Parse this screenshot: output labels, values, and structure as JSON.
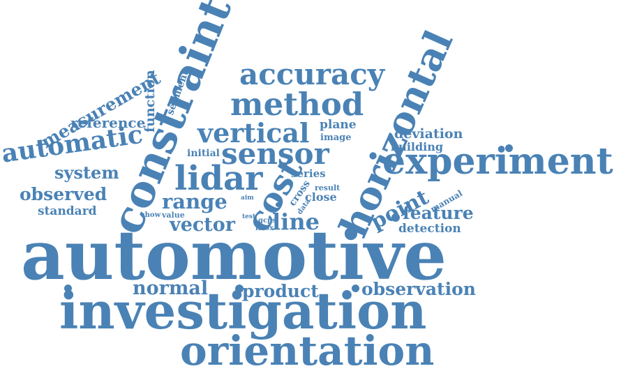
{
  "color": "#4a82b5",
  "words": [
    {
      "id": "automotive",
      "text": "automotive"
    },
    {
      "id": "investigation",
      "text": "investigation"
    },
    {
      "id": "orientation",
      "text": "orientation"
    },
    {
      "id": "constraint",
      "text": "constraint"
    },
    {
      "id": "horizontal",
      "text": "horizontal"
    },
    {
      "id": "experiment",
      "text": "experiment"
    },
    {
      "id": "accuracy",
      "text": "accuracy"
    },
    {
      "id": "method",
      "text": "method"
    },
    {
      "id": "vertical",
      "text": "vertical"
    },
    {
      "id": "sensor",
      "text": "sensor"
    },
    {
      "id": "lidar",
      "text": "lidar"
    },
    {
      "id": "cost",
      "text": "cost"
    },
    {
      "id": "automatic",
      "text": "automatic"
    },
    {
      "id": "measurement",
      "text": "measurement"
    },
    {
      "id": "function",
      "text": "function"
    },
    {
      "id": "segment",
      "text": "segment"
    },
    {
      "id": "reference",
      "text": "reference"
    },
    {
      "id": "system",
      "text": "system"
    },
    {
      "id": "observed",
      "text": "observed"
    },
    {
      "id": "standard",
      "text": "standard"
    },
    {
      "id": "range",
      "text": "range"
    },
    {
      "id": "vector",
      "text": "vector"
    },
    {
      "id": "line",
      "text": "line"
    },
    {
      "id": "point",
      "text": "point"
    },
    {
      "id": "feature",
      "text": "feature"
    },
    {
      "id": "detection",
      "text": "detection"
    },
    {
      "id": "deviation",
      "text": "deviation"
    },
    {
      "id": "building",
      "text": "building"
    },
    {
      "id": "plane",
      "text": "plane"
    },
    {
      "id": "image",
      "text": "image"
    },
    {
      "id": "initial",
      "text": "initial"
    },
    {
      "id": "series",
      "text": "series"
    },
    {
      "id": "result",
      "text": "result"
    },
    {
      "id": "close",
      "text": "close"
    },
    {
      "id": "cross",
      "text": "cross"
    },
    {
      "id": "data",
      "text": "data"
    },
    {
      "id": "aim",
      "text": "aim"
    },
    {
      "id": "show",
      "text": "show"
    },
    {
      "id": "value",
      "text": "value"
    },
    {
      "id": "test",
      "text": "test"
    },
    {
      "id": "gcps",
      "text": "gcps"
    },
    {
      "id": "livox",
      "text": "livox"
    },
    {
      "id": "manual",
      "text": "manual"
    },
    {
      "id": "normal",
      "text": "normal"
    },
    {
      "id": "product",
      "text": "product"
    },
    {
      "id": "observation",
      "text": "observation"
    }
  ]
}
